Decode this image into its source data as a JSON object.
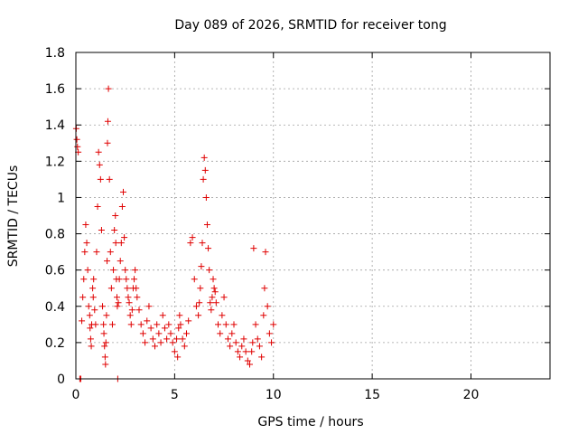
{
  "chart_data": {
    "type": "scatter",
    "title": "Day 089 of 2026, SRMTID for receiver tong",
    "xlabel": "GPS time / hours",
    "ylabel": "SRMTID / TECUs",
    "xlim": [
      0,
      24
    ],
    "ylim": [
      0,
      1.8
    ],
    "xticks": [
      0,
      5,
      10,
      15,
      20
    ],
    "xtick_labels": [
      "0",
      "5",
      "10",
      "15",
      "20"
    ],
    "yticks": [
      0,
      0.2,
      0.4,
      0.6,
      0.8,
      1.0,
      1.2,
      1.4,
      1.6,
      1.8
    ],
    "ytick_labels": [
      "0",
      "0.2",
      "0.4",
      "0.6",
      "0.8",
      "1",
      "1.2",
      "1.4",
      "1.6",
      "1.8"
    ],
    "grid": true,
    "marker": "+",
    "color": "#e00000",
    "series": [
      {
        "name": "SRMTID",
        "x": [
          0.02,
          0.05,
          0.08,
          0.12,
          0.2,
          0.25,
          0.3,
          0.35,
          0.4,
          0.45,
          0.5,
          0.55,
          0.6,
          0.65,
          0.7,
          0.72,
          0.75,
          0.78,
          0.8,
          0.85,
          0.88,
          0.9,
          0.95,
          1.0,
          1.05,
          1.1,
          1.15,
          1.2,
          1.25,
          1.3,
          1.35,
          1.4,
          1.42,
          1.45,
          1.48,
          1.5,
          1.52,
          1.55,
          1.58,
          1.6,
          1.62,
          1.65,
          1.7,
          1.75,
          1.8,
          1.85,
          1.9,
          1.95,
          2.0,
          2.02,
          2.05,
          2.08,
          2.1,
          2.12,
          2.15,
          2.2,
          2.25,
          2.3,
          2.35,
          2.4,
          2.45,
          2.5,
          2.55,
          2.6,
          2.65,
          2.7,
          2.75,
          2.8,
          2.85,
          2.9,
          2.95,
          3.0,
          3.05,
          3.1,
          3.2,
          3.3,
          3.4,
          3.5,
          3.6,
          3.7,
          3.8,
          3.9,
          4.0,
          4.1,
          4.2,
          4.3,
          4.4,
          4.5,
          4.6,
          4.7,
          4.8,
          4.9,
          5.0,
          5.1,
          5.15,
          5.2,
          5.25,
          5.3,
          5.4,
          5.5,
          5.6,
          5.7,
          5.8,
          5.9,
          6.0,
          6.1,
          6.2,
          6.25,
          6.3,
          6.35,
          6.4,
          6.45,
          6.5,
          6.55,
          6.6,
          6.65,
          6.7,
          6.75,
          6.8,
          6.85,
          6.9,
          6.95,
          7.0,
          7.05,
          7.1,
          7.2,
          7.3,
          7.4,
          7.5,
          7.6,
          7.7,
          7.8,
          7.9,
          8.0,
          8.1,
          8.2,
          8.3,
          8.4,
          8.5,
          8.6,
          8.7,
          8.8,
          8.9,
          8.95,
          9.0,
          9.1,
          9.2,
          9.3,
          9.4,
          9.5,
          9.55,
          9.6,
          9.7,
          9.8,
          9.9,
          10.0
        ],
        "y": [
          1.38,
          1.32,
          1.28,
          1.25,
          0.0,
          0.0,
          0.32,
          0.45,
          0.55,
          0.7,
          0.85,
          0.75,
          0.6,
          0.4,
          0.35,
          0.28,
          0.22,
          0.18,
          0.3,
          0.5,
          0.45,
          0.55,
          0.38,
          0.3,
          0.7,
          0.95,
          1.25,
          1.18,
          1.1,
          0.82,
          0.4,
          0.3,
          0.25,
          0.18,
          0.12,
          0.08,
          0.2,
          0.35,
          0.65,
          1.3,
          1.42,
          1.6,
          1.1,
          0.7,
          0.5,
          0.3,
          0.6,
          0.82,
          0.9,
          0.75,
          0.55,
          0.45,
          0.4,
          0.0,
          0.42,
          0.55,
          0.65,
          0.75,
          0.95,
          1.03,
          0.78,
          0.6,
          0.55,
          0.5,
          0.45,
          0.42,
          0.35,
          0.3,
          0.38,
          0.5,
          0.55,
          0.6,
          0.5,
          0.45,
          0.38,
          0.3,
          0.25,
          0.2,
          0.32,
          0.4,
          0.28,
          0.22,
          0.18,
          0.3,
          0.25,
          0.2,
          0.35,
          0.28,
          0.22,
          0.3,
          0.25,
          0.2,
          0.15,
          0.22,
          0.12,
          0.28,
          0.35,
          0.3,
          0.22,
          0.18,
          0.25,
          0.32,
          0.75,
          0.78,
          0.55,
          0.4,
          0.35,
          0.42,
          0.5,
          0.62,
          0.75,
          1.1,
          1.22,
          1.15,
          1.0,
          0.85,
          0.72,
          0.6,
          0.42,
          0.38,
          0.45,
          0.55,
          0.5,
          0.48,
          0.42,
          0.3,
          0.25,
          0.35,
          0.45,
          0.3,
          0.22,
          0.18,
          0.25,
          0.3,
          0.2,
          0.15,
          0.12,
          0.18,
          0.22,
          0.15,
          0.1,
          0.08,
          0.15,
          0.2,
          0.72,
          0.3,
          0.22,
          0.18,
          0.12,
          0.35,
          0.5,
          0.7,
          0.4,
          0.25,
          0.2,
          0.3
        ]
      }
    ]
  }
}
